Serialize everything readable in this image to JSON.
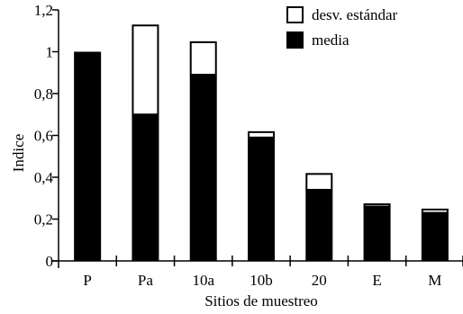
{
  "chart_data": {
    "type": "bar",
    "stacked": true,
    "title": "",
    "xlabel": "Sitios de muestreo",
    "ylabel": "Indice",
    "ylim": [
      0,
      1.2
    ],
    "yticks": [
      0,
      0.2,
      0.4,
      0.6,
      0.8,
      1,
      1.2
    ],
    "ytick_labels": [
      "0",
      "0,2",
      "0,4",
      "0,6",
      "0,8",
      "1",
      "1,2"
    ],
    "categories": [
      "P",
      "Pa",
      "10a",
      "10b",
      "20",
      "E",
      "M"
    ],
    "series": [
      {
        "name": "media",
        "color": "#000000",
        "values": [
          1.0,
          0.7,
          0.89,
          0.59,
          0.34,
          0.26,
          0.23
        ]
      },
      {
        "name": "desv. estándar",
        "color": "#ffffff",
        "values": [
          0.0,
          0.43,
          0.16,
          0.03,
          0.08,
          0.015,
          0.02
        ]
      }
    ],
    "legend_position": "top-right",
    "grid": false
  }
}
